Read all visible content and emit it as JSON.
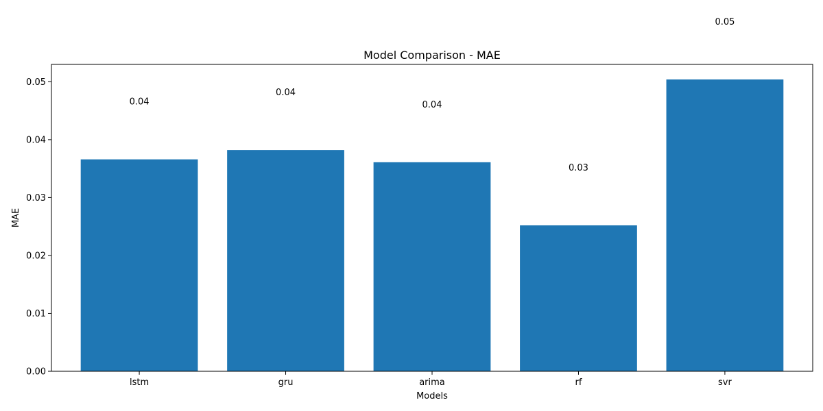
{
  "chart_data": {
    "type": "bar",
    "title": "Model Comparison - MAE",
    "xlabel": "Models",
    "ylabel": "MAE",
    "categories": [
      "lstm",
      "gru",
      "arima",
      "rf",
      "svr"
    ],
    "values": [
      0.0366,
      0.0382,
      0.0361,
      0.0252,
      0.0504
    ],
    "data_labels": [
      "0.04",
      "0.04",
      "0.04",
      "0.03",
      "0.05"
    ],
    "ylim": [
      0,
      0.053
    ],
    "yticks": [
      0.0,
      0.01,
      0.02,
      0.03,
      0.04,
      0.05
    ],
    "ytick_labels": [
      "0.00",
      "0.01",
      "0.02",
      "0.03",
      "0.04",
      "0.05"
    ],
    "grid": false,
    "bar_color": "#1f77b4"
  }
}
